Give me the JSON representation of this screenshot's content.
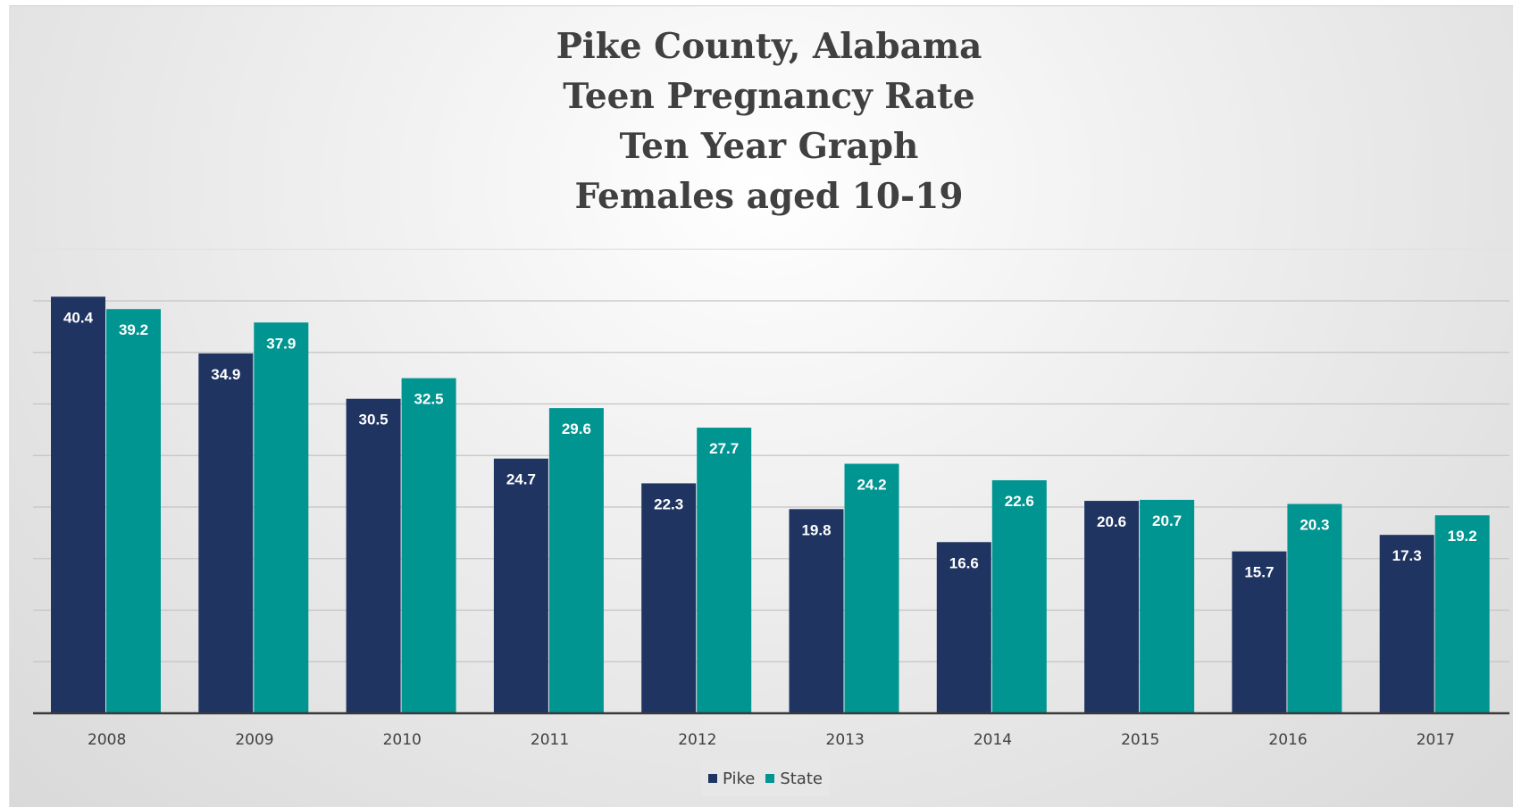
{
  "chart_data": {
    "type": "bar",
    "title": [
      "Pike County, Alabama",
      "Teen Pregnancy Rate",
      "Ten Year Graph",
      "Females aged 10-19"
    ],
    "categories": [
      "2008",
      "2009",
      "2010",
      "2011",
      "2012",
      "2013",
      "2014",
      "2015",
      "2016",
      "2017"
    ],
    "series": [
      {
        "name": "Pike",
        "color": "#1f3461",
        "values": [
          40.4,
          34.9,
          30.5,
          24.7,
          22.3,
          19.8,
          16.6,
          20.6,
          15.7,
          17.3
        ]
      },
      {
        "name": "State",
        "color": "#009591",
        "values": [
          39.2,
          37.9,
          32.5,
          29.6,
          27.7,
          24.2,
          22.6,
          20.7,
          20.3,
          19.2
        ]
      }
    ],
    "ylim": [
      0,
      45
    ],
    "y_axis_labels_shown": false,
    "grid": true,
    "legend_position": "bottom",
    "xlabel": "",
    "ylabel": ""
  }
}
